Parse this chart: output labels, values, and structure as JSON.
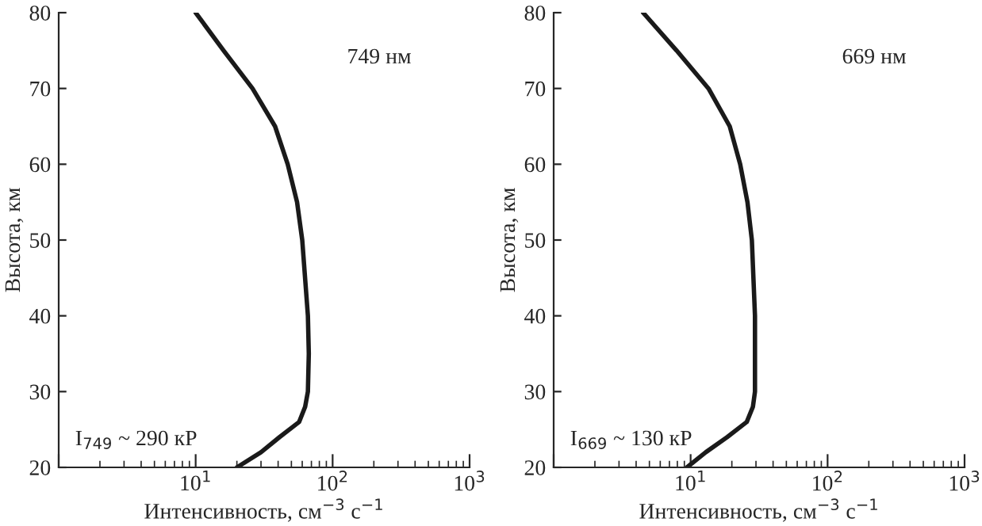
{
  "chart_data": [
    {
      "type": "line",
      "xlabel": "Интенсивность, см$^{−3}$ с$^{−1}$",
      "ylabel": "Высота, км",
      "log": "x",
      "xlim": [
        1,
        1000
      ],
      "ylim": [
        20,
        80
      ],
      "xticks": [
        {
          "value": 1,
          "label": null
        },
        {
          "value": 10,
          "label": "10$^{1}$"
        },
        {
          "value": 100,
          "label": "10$^{2}$"
        },
        {
          "value": 1000,
          "label": "10$^{3}$"
        }
      ],
      "yticks": [
        20,
        30,
        40,
        50,
        60,
        70,
        80
      ],
      "annotations": [
        "749 нм",
        "I$_{749}$ ~ 290 кР"
      ],
      "series": [
        {
          "color": "#1a1a1a",
          "x": [
            10,
            16,
            26,
            38,
            47,
            55,
            60,
            66,
            67,
            66,
            63,
            57,
            41,
            30,
            20
          ],
          "values": [
            80,
            75,
            70,
            65,
            60,
            55,
            50,
            40,
            35,
            30,
            28,
            26,
            24,
            22,
            20
          ]
        }
      ]
    },
    {
      "type": "line",
      "xlabel": "Интенсивность, см$^{−3}$ с$^{−1}$",
      "ylabel": "Высота, км",
      "log": "x",
      "xlim": [
        1,
        1000
      ],
      "ylim": [
        20,
        80
      ],
      "xticks": [
        {
          "value": 1,
          "label": null
        },
        {
          "value": 10,
          "label": "10$^{1}$"
        },
        {
          "value": 100,
          "label": "10$^{2}$"
        },
        {
          "value": 1000,
          "label": "10$^{3}$"
        }
      ],
      "yticks": [
        20,
        30,
        40,
        50,
        60,
        70,
        80
      ],
      "annotations": [
        "669 нм",
        "I$_{669}$ ~ 130 кР"
      ],
      "series": [
        {
          "color": "#1a1a1a",
          "x": [
            4.5,
            7.9,
            13.5,
            19.3,
            23,
            26,
            28,
            29.5,
            29.5,
            28.5,
            25.7,
            18.5,
            12.9,
            9.4
          ],
          "values": [
            80,
            75,
            70,
            65,
            60,
            55,
            50,
            40,
            30,
            28,
            26,
            24,
            22,
            20
          ]
        }
      ]
    }
  ]
}
